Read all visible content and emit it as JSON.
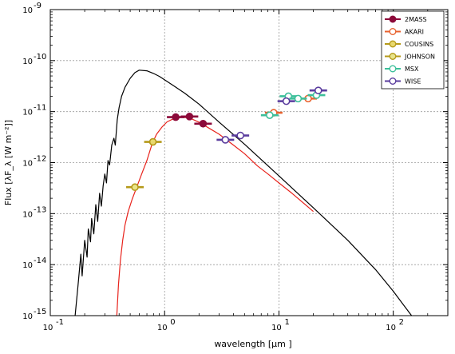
{
  "chart_data": {
    "type": "scatter",
    "xlabel": "wavelength [μm ]",
    "ylabel": "Flux [λF_λ [W m⁻²]]",
    "xscale": "log",
    "yscale": "log",
    "xlim": [
      0.1,
      300
    ],
    "ylim": [
      1e-15,
      1e-09
    ],
    "grid": true,
    "legend_position": "top-right",
    "x_ticks": [
      {
        "value": 0.1,
        "base": "10",
        "exp": "-1"
      },
      {
        "value": 1,
        "base": "10",
        "exp": "0"
      },
      {
        "value": 10,
        "base": "10",
        "exp": "1"
      },
      {
        "value": 100,
        "base": "10",
        "exp": "2"
      }
    ],
    "y_ticks": [
      {
        "value": 1e-15,
        "base": "10",
        "exp": "-15"
      },
      {
        "value": 1e-14,
        "base": "10",
        "exp": "-14"
      },
      {
        "value": 1e-13,
        "base": "10",
        "exp": "-13"
      },
      {
        "value": 1e-12,
        "base": "10",
        "exp": "-12"
      },
      {
        "value": 1e-11,
        "base": "10",
        "exp": "-11"
      },
      {
        "value": 1e-10,
        "base": "10",
        "exp": "-10"
      },
      {
        "value": 1e-09,
        "base": "10",
        "exp": "-9"
      }
    ],
    "lines": [
      {
        "name": "",
        "color": "#000000",
        "points": [
          [
            0.165,
            1e-15
          ],
          [
            0.175,
            4e-15
          ],
          [
            0.185,
            1.6e-14
          ],
          [
            0.19,
            6e-15
          ],
          [
            0.2,
            3e-14
          ],
          [
            0.21,
            1.4e-14
          ],
          [
            0.215,
            5e-14
          ],
          [
            0.225,
            2.8e-14
          ],
          [
            0.23,
            8e-14
          ],
          [
            0.24,
            4e-14
          ],
          [
            0.25,
            1.5e-13
          ],
          [
            0.26,
            7e-14
          ],
          [
            0.27,
            2.5e-13
          ],
          [
            0.28,
            1.4e-13
          ],
          [
            0.29,
            3.5e-13
          ],
          [
            0.3,
            6e-13
          ],
          [
            0.31,
            4e-13
          ],
          [
            0.32,
            1.1e-12
          ],
          [
            0.33,
            9e-13
          ],
          [
            0.345,
            2.2e-12
          ],
          [
            0.36,
            3e-12
          ],
          [
            0.37,
            2.2e-12
          ],
          [
            0.385,
            7e-12
          ],
          [
            0.4,
            1.2e-11
          ],
          [
            0.42,
            2e-11
          ],
          [
            0.45,
            3e-11
          ],
          [
            0.5,
            4.5e-11
          ],
          [
            0.55,
            5.8e-11
          ],
          [
            0.6,
            6.5e-11
          ],
          [
            0.7,
            6.3e-11
          ],
          [
            0.8,
            5.6e-11
          ],
          [
            0.9,
            4.9e-11
          ],
          [
            1.0,
            4.2e-11
          ],
          [
            1.2,
            3.2e-11
          ],
          [
            1.5,
            2.3e-11
          ],
          [
            2.0,
            1.4e-11
          ],
          [
            3.0,
            6.2e-12
          ],
          [
            5.0,
            2.3e-12
          ],
          [
            10.0,
            5.5e-13
          ],
          [
            20.0,
            1.3e-13
          ],
          [
            40.0,
            3e-14
          ],
          [
            70.0,
            8e-15
          ],
          [
            100.0,
            3e-15
          ],
          [
            140.0,
            1.1e-15
          ],
          [
            150.0,
            9e-16
          ]
        ]
      },
      {
        "name": "",
        "color": "#e8231c",
        "points": [
          [
            0.38,
            8e-16
          ],
          [
            0.395,
            4e-15
          ],
          [
            0.41,
            1.2e-14
          ],
          [
            0.43,
            3e-14
          ],
          [
            0.45,
            6e-14
          ],
          [
            0.48,
            1.1e-13
          ],
          [
            0.52,
            1.9e-13
          ],
          [
            0.57,
            3.3e-13
          ],
          [
            0.63,
            6e-13
          ],
          [
            0.7,
            1.1e-12
          ],
          [
            0.78,
            2.4e-12
          ],
          [
            0.85,
            3.6e-12
          ],
          [
            0.95,
            5e-12
          ],
          [
            1.05,
            6.3e-12
          ],
          [
            1.2,
            7.3e-12
          ],
          [
            1.4,
            7.8e-12
          ],
          [
            1.65,
            7.5e-12
          ],
          [
            2.0,
            6.2e-12
          ],
          [
            2.5,
            4.6e-12
          ],
          [
            3.0,
            3.6e-12
          ],
          [
            4.0,
            2.2e-12
          ],
          [
            5.0,
            1.5e-12
          ],
          [
            6.5,
            8.6e-13
          ],
          [
            8.0,
            6e-13
          ],
          [
            10.0,
            4e-13
          ],
          [
            13.0,
            2.5e-13
          ],
          [
            20.0,
            1.1e-13
          ]
        ]
      }
    ],
    "series": [
      {
        "name": "2MASS",
        "color": "#8c0a3a",
        "fill": "#8c0a3a",
        "points": [
          [
            1.25,
            7.8e-12
          ],
          [
            1.65,
            8e-12
          ],
          [
            2.17,
            5.8e-12
          ]
        ]
      },
      {
        "name": "AKARI",
        "color": "#e8622e",
        "fill": "#ffffff",
        "points": [
          [
            9.0,
            9.5e-12
          ],
          [
            18.0,
            1.8e-11
          ]
        ]
      },
      {
        "name": "COUSINS",
        "color": "#b59a1a",
        "fill": "#e8d86e",
        "points": [
          [
            0.79,
            2.55e-12
          ]
        ]
      },
      {
        "name": "JOHNSON",
        "color": "#b59a1a",
        "fill": "#e8e48a",
        "points": [
          [
            0.55,
            3.3e-13
          ]
        ]
      },
      {
        "name": "MSX",
        "color": "#3cbf9a",
        "fill": "#ffffff",
        "points": [
          [
            8.3,
            8.5e-12
          ],
          [
            12.1,
            2e-11
          ],
          [
            14.7,
            1.8e-11
          ],
          [
            21.3,
            2.1e-11
          ]
        ]
      },
      {
        "name": "WISE",
        "color": "#5a3c9e",
        "fill": "#ffffff",
        "points": [
          [
            3.4,
            2.8e-12
          ],
          [
            4.6,
            3.4e-12
          ],
          [
            11.6,
            1.6e-11
          ],
          [
            22.1,
            2.6e-11
          ]
        ]
      }
    ]
  }
}
